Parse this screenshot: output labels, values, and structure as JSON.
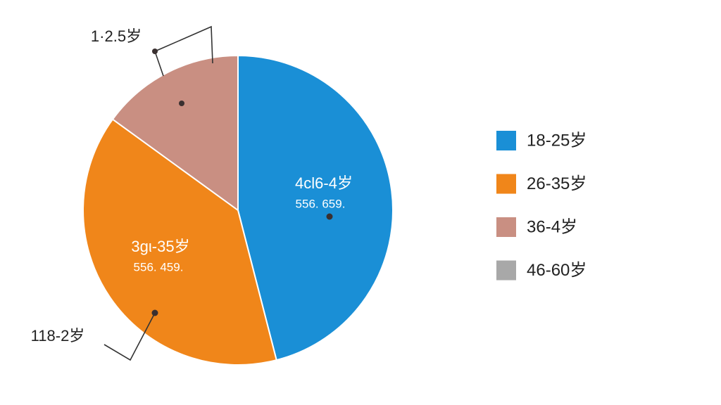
{
  "chart_data": {
    "type": "pie",
    "categories": [
      "18-25岁",
      "26-35岁",
      "36-4岁",
      "46-60岁"
    ],
    "values": [
      46,
      39,
      15,
      0
    ],
    "colors": [
      "#1a8fd6",
      "#f0861a",
      "#c98f82",
      "#a8a8a8"
    ],
    "slice_labels": [
      {
        "name": "4cl6-4岁",
        "value_text": "556. 659."
      },
      {
        "name": "3gι-35岁",
        "value_text": "556. 459."
      }
    ],
    "annotations": [
      "1·2.5岁",
      "118-2岁"
    ],
    "legend": "right"
  }
}
